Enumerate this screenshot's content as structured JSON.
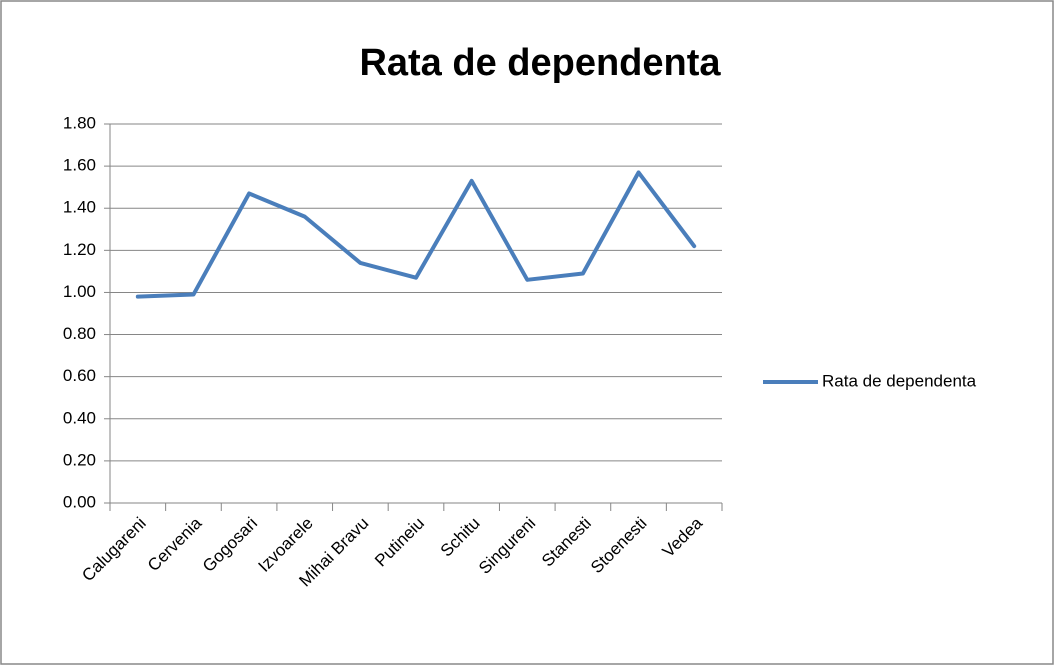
{
  "chart_data": {
    "type": "line",
    "title": "Rata de dependenta",
    "categories": [
      "Calugareni",
      "Cervenia",
      "Gogosari",
      "Izvoarele",
      "Mihai Bravu",
      "Putineiu",
      "Schitu",
      "Singureni",
      "Stanesti",
      "Stoenesti",
      "Vedea"
    ],
    "series": [
      {
        "name": "Rata de dependenta",
        "color": "#4a7ebb",
        "values": [
          0.98,
          0.99,
          1.47,
          1.36,
          1.14,
          1.07,
          1.53,
          1.06,
          1.09,
          1.57,
          1.22
        ]
      }
    ],
    "ylim": [
      0,
      1.8
    ],
    "yticks": [
      {
        "value": 0,
        "label": "0.00"
      },
      {
        "value": 0.2,
        "label": "0.20"
      },
      {
        "value": 0.4,
        "label": "0.40"
      },
      {
        "value": 0.6,
        "label": "0.60"
      },
      {
        "value": 0.8,
        "label": "0.80"
      },
      {
        "value": 1.0,
        "label": "1.00"
      },
      {
        "value": 1.2,
        "label": "1.20"
      },
      {
        "value": 1.4,
        "label": "1.40"
      },
      {
        "value": 1.6,
        "label": "1.60"
      },
      {
        "value": 1.8,
        "label": "1.80"
      }
    ],
    "grid": true,
    "legend": "right"
  }
}
